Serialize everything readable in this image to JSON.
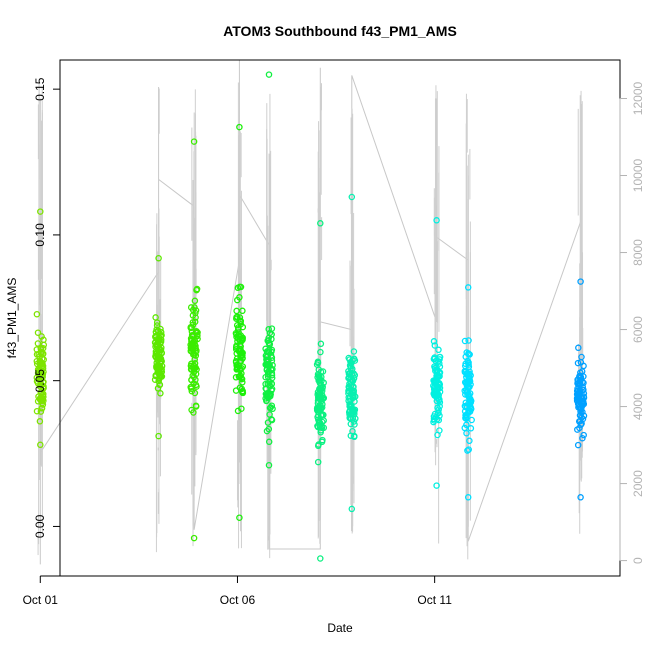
{
  "chart_data": {
    "type": "scatter",
    "title": "ATOM3 Southbound f43_PM1_AMS",
    "xlabel": "Date",
    "ylabel": "f43_PM1_AMS",
    "x_ticks": [
      "Oct 01",
      "Oct 06",
      "Oct 11"
    ],
    "y_ticks": [
      "0.00",
      "0.05",
      "0.10",
      "0.15"
    ],
    "y2_ticks": [
      "0",
      "2000",
      "4000",
      "6000",
      "8000",
      "10000",
      "12000"
    ],
    "xlim_days": [
      0.5,
      14.7
    ],
    "ylim": [
      -0.017,
      0.16
    ],
    "y2lim": [
      -400,
      13000
    ],
    "grid": false,
    "legend": "none",
    "series": [
      {
        "x_day": 0.0,
        "y_center": 0.052,
        "y_spread": 0.012,
        "y_min": 0.028,
        "y_max": 0.108,
        "color": "#7ee400"
      },
      {
        "x_day": 3.0,
        "y_center": 0.058,
        "y_spread": 0.01,
        "y_min": 0.031,
        "y_max": 0.092,
        "color": "#5de800"
      },
      {
        "x_day": 3.9,
        "y_center": 0.06,
        "y_spread": 0.015,
        "y_min": -0.004,
        "y_max": 0.132,
        "color": "#3bec00"
      },
      {
        "x_day": 5.05,
        "y_center": 0.06,
        "y_spread": 0.016,
        "y_min": 0.003,
        "y_max": 0.137,
        "color": "#1df00a"
      },
      {
        "x_day": 5.8,
        "y_center": 0.05,
        "y_spread": 0.015,
        "y_min": 0.021,
        "y_max": 0.155,
        "color": "#10f040"
      },
      {
        "x_day": 7.1,
        "y_center": 0.043,
        "y_spread": 0.012,
        "y_min": -0.011,
        "y_max": 0.104,
        "color": "#0af080"
      },
      {
        "x_day": 7.9,
        "y_center": 0.045,
        "y_spread": 0.012,
        "y_min": 0.006,
        "y_max": 0.113,
        "color": "#08f0b0"
      },
      {
        "x_day": 10.05,
        "y_center": 0.048,
        "y_spread": 0.011,
        "y_min": 0.014,
        "y_max": 0.105,
        "color": "#00f0e0"
      },
      {
        "x_day": 10.85,
        "y_center": 0.047,
        "y_spread": 0.012,
        "y_min": 0.01,
        "y_max": 0.082,
        "color": "#00e0ff"
      },
      {
        "x_day": 13.7,
        "y_center": 0.044,
        "y_spread": 0.011,
        "y_min": 0.01,
        "y_max": 0.084,
        "color": "#00a0ff"
      }
    ],
    "secondary_track": [
      [
        0.0,
        -100
      ],
      [
        0.0,
        12000
      ],
      [
        0.0,
        2800
      ],
      [
        3.0,
        7500
      ],
      [
        3.0,
        12300
      ],
      [
        3.0,
        9900
      ],
      [
        3.9,
        9200
      ],
      [
        3.9,
        800
      ],
      [
        5.05,
        7800
      ],
      [
        5.05,
        13000
      ],
      [
        5.05,
        9500
      ],
      [
        5.8,
        8200
      ],
      [
        5.8,
        300
      ],
      [
        7.1,
        300
      ],
      [
        7.1,
        12800
      ],
      [
        7.1,
        6200
      ],
      [
        7.9,
        6000
      ],
      [
        7.9,
        2800
      ],
      [
        7.9,
        12600
      ],
      [
        10.05,
        6200
      ],
      [
        10.05,
        12000
      ],
      [
        10.05,
        8400
      ],
      [
        10.85,
        7800
      ],
      [
        10.85,
        10000
      ],
      [
        10.85,
        6800
      ],
      [
        10.85,
        500
      ],
      [
        13.7,
        8800
      ],
      [
        13.7,
        9800
      ]
    ]
  }
}
